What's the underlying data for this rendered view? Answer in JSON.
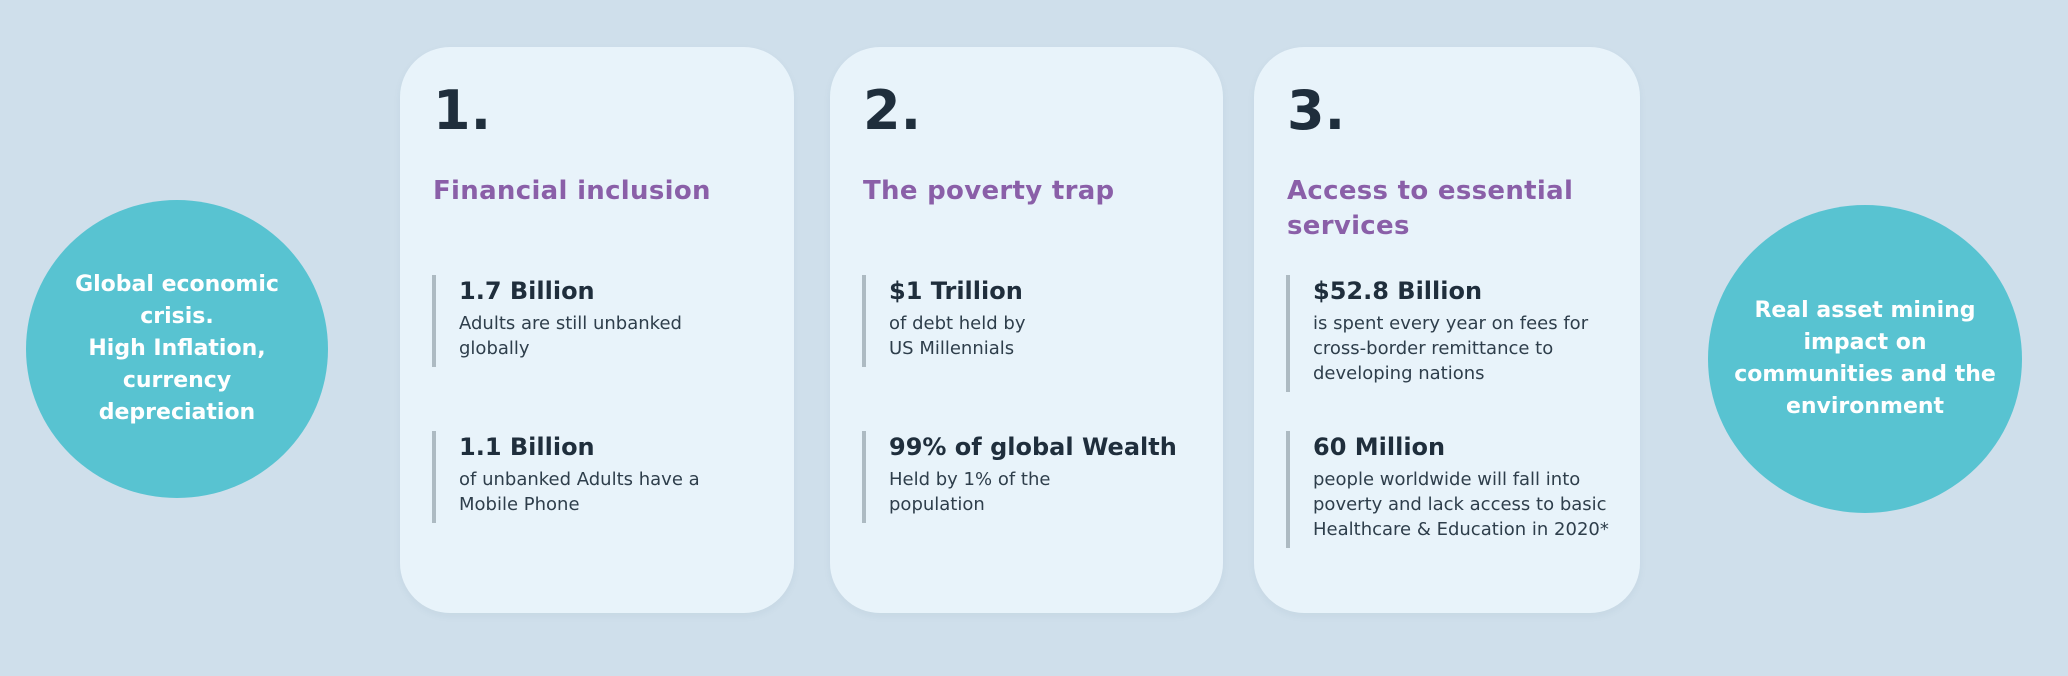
{
  "colors": {
    "page_background": "#cfdfeb",
    "card_background": "#e8f3fa",
    "bubble_teal": "#58c3d1",
    "heading_purple": "#8a5fa8",
    "text_dark": "#1f2e3c",
    "stat_bar_gray": "#adbac2",
    "bubble_text": "#ffffff"
  },
  "left_bubble": {
    "text": "Global economic\ncrisis.\nHigh Inflation,\ncurrency\ndepreciation"
  },
  "right_bubble": {
    "text": "Real asset  mining\nimpact on\ncommunities and the\nenvironment"
  },
  "cards": [
    {
      "number": "1.",
      "heading": "Financial inclusion",
      "stats": [
        {
          "value": "1.7 Billion",
          "description": "Adults are still unbanked\nglobally"
        },
        {
          "value": "1.1 Billion",
          "description": "of unbanked Adults have a\nMobile Phone"
        }
      ]
    },
    {
      "number": "2.",
      "heading": "The poverty trap",
      "stats": [
        {
          "value": "$1 Trillion",
          "description": "of debt held by\nUS Millennials"
        },
        {
          "value": "99% of global Wealth",
          "description": "Held by 1% of the\npopulation"
        }
      ]
    },
    {
      "number": "3.",
      "heading": "Access to essential\nservices",
      "stats": [
        {
          "value": "$52.8 Billion",
          "description": "is spent every year on fees for\ncross-border remittance to\ndeveloping nations"
        },
        {
          "value": "60 Million",
          "description": "people worldwide will fall into\npoverty and lack access to basic\nHealthcare & Education in 2020*"
        }
      ]
    }
  ]
}
